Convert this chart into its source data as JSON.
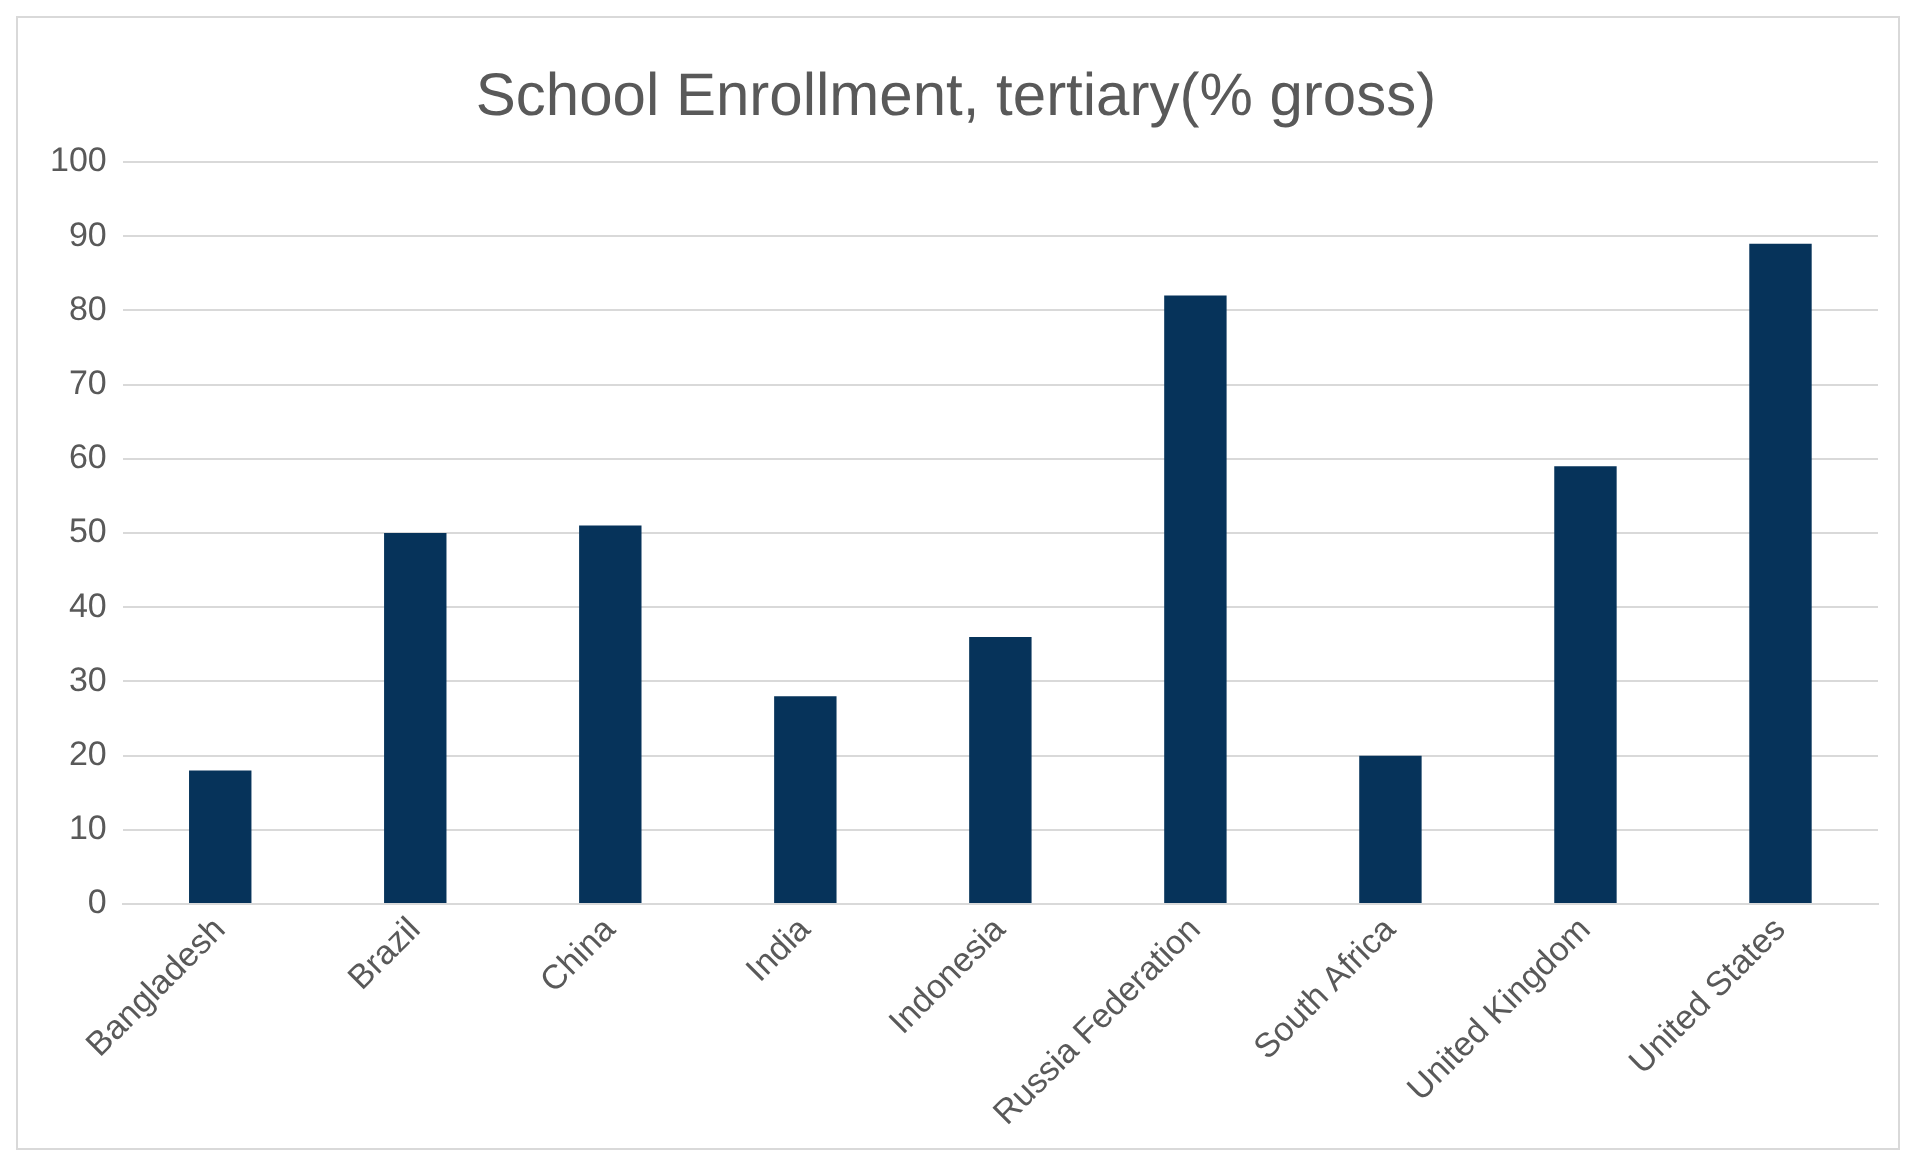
{
  "chart_data": {
    "type": "bar",
    "title": "School Enrollment, tertiary(% gross)",
    "categories": [
      "Bangladesh",
      "Brazil",
      "China",
      "India",
      "Indonesia",
      "Russia Federation",
      "South Africa",
      "United Kingdom",
      "United States"
    ],
    "values": [
      18,
      50,
      51,
      28,
      36,
      82,
      20,
      59,
      89
    ],
    "color": "#06335a",
    "ylim": [
      0,
      100
    ],
    "yticks": [
      0,
      10,
      20,
      30,
      40,
      50,
      60,
      70,
      80,
      90,
      100
    ],
    "grid": "y",
    "legend": false
  }
}
